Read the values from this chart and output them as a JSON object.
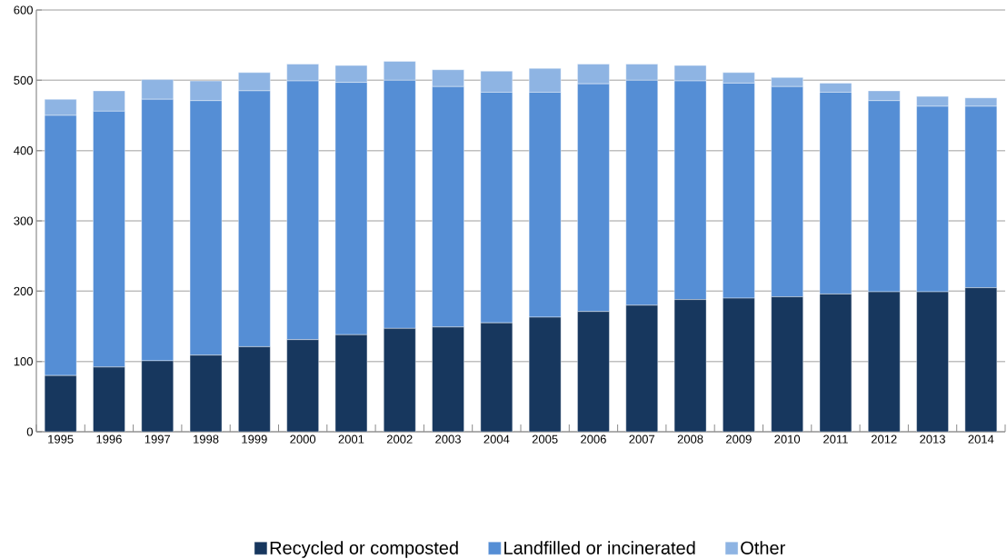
{
  "chart_data": {
    "type": "bar",
    "stacked": true,
    "categories": [
      "1995",
      "1996",
      "1997",
      "1998",
      "1999",
      "2000",
      "2001",
      "2002",
      "2003",
      "2004",
      "2005",
      "2006",
      "2007",
      "2008",
      "2009",
      "2010",
      "2011",
      "2012",
      "2013",
      "2014"
    ],
    "series": [
      {
        "name": "Recycled or composted",
        "color": "#17375e",
        "values": [
          80,
          92,
          101,
          109,
          121,
          131,
          138,
          147,
          149,
          155,
          163,
          171,
          180,
          188,
          190,
          192,
          196,
          199,
          199,
          205
        ]
      },
      {
        "name": "Landfilled or incinerated",
        "color": "#558ed5",
        "values": [
          370,
          364,
          372,
          362,
          364,
          368,
          359,
          353,
          342,
          328,
          320,
          324,
          320,
          311,
          306,
          299,
          287,
          272,
          264,
          258
        ]
      },
      {
        "name": "Other",
        "color": "#8eb4e3",
        "values": [
          23,
          29,
          28,
          28,
          26,
          24,
          24,
          27,
          24,
          30,
          34,
          28,
          23,
          22,
          15,
          13,
          13,
          14,
          14,
          12
        ]
      }
    ],
    "ylim": [
      0,
      600
    ],
    "yticks": [
      0,
      100,
      200,
      300,
      400,
      500,
      600
    ],
    "grid": "y",
    "legend": "bottom"
  }
}
